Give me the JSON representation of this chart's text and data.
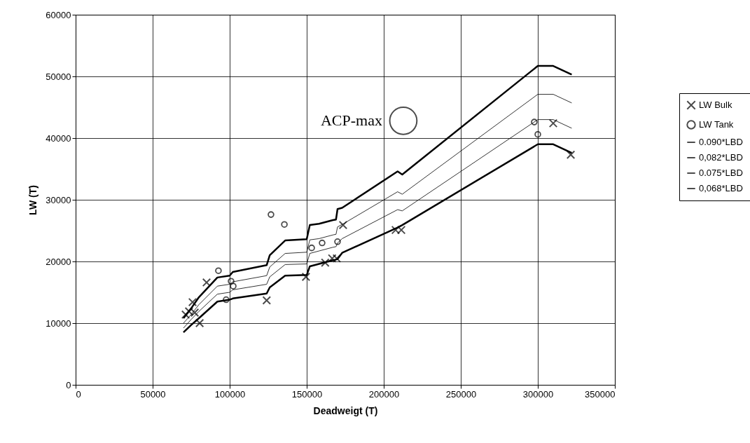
{
  "chart_data": {
    "type": "scatter",
    "xlabel": "Deadweigt (T)",
    "ylabel": "LW (T)",
    "xlim": [
      0,
      350000
    ],
    "xticks": [
      0,
      50000,
      100000,
      150000,
      200000,
      250000,
      300000,
      350000
    ],
    "ylim": [
      0,
      60000
    ],
    "yticks": [
      0,
      10000,
      20000,
      30000,
      40000,
      50000,
      60000
    ],
    "grid": true,
    "legend": "right",
    "annotations": [
      {
        "text": "ACP-max",
        "x": 212700,
        "y": 42800
      }
    ],
    "series": [
      {
        "name": "LW Bulk",
        "marker": "cross",
        "color": "#000000",
        "x": [
          71400,
          73600,
          75900,
          77300,
          80500,
          85000,
          124000,
          149500,
          162000,
          166500,
          169500,
          173600,
          207700,
          211400,
          310000,
          321400
        ],
        "values": [
          11400,
          11900,
          13400,
          11700,
          10000,
          16600,
          13700,
          17500,
          19800,
          20500,
          20500,
          25900,
          25100,
          25100,
          42400,
          37300
        ]
      },
      {
        "name": "LW Tank",
        "marker": "circle",
        "color": "#000000",
        "x": [
          92700,
          97700,
          100900,
          102300,
          126800,
          135500,
          153200,
          160000,
          170000,
          297700,
          300000
        ],
        "values": [
          18500,
          13800,
          16800,
          16000,
          27600,
          26000,
          22200,
          23000,
          23200,
          42600,
          40600
        ]
      },
      {
        "name": "0.090*LBD",
        "type": "line",
        "marker": "none",
        "color": "#000000",
        "x": [
          70000,
          75000,
          80000,
          92000,
          100000,
          102000,
          124000,
          126000,
          136000,
          150000,
          152000,
          158000,
          167000,
          169000,
          170000,
          173000,
          209000,
          212000,
          300000,
          310000,
          322000
        ],
        "values": [
          10800,
          12400,
          14200,
          17400,
          17700,
          18300,
          19400,
          21000,
          23400,
          23600,
          25900,
          26100,
          26700,
          26800,
          28500,
          28700,
          34600,
          34100,
          51700,
          51700,
          50300
        ]
      },
      {
        "name": "0,082*LBD",
        "type": "line",
        "marker": "none",
        "color": "#000000",
        "x": [
          70000,
          75000,
          80000,
          92000,
          100000,
          102000,
          124000,
          126000,
          136000,
          150000,
          152000,
          158000,
          167000,
          169000,
          170000,
          173000,
          209000,
          212000,
          300000,
          310000,
          322000
        ],
        "values": [
          10000,
          11400,
          13000,
          16000,
          16300,
          16700,
          17700,
          19100,
          21300,
          21500,
          23500,
          23700,
          24300,
          24400,
          25600,
          26000,
          31300,
          30900,
          47100,
          47100,
          45700
        ]
      },
      {
        "name": "0.075*LBD",
        "type": "line",
        "marker": "none",
        "color": "#000000",
        "x": [
          70000,
          75000,
          80000,
          92000,
          100000,
          102000,
          124000,
          126000,
          136000,
          150000,
          152000,
          158000,
          167000,
          169000,
          170000,
          173000,
          209000,
          212000,
          300000,
          310000,
          322000
        ],
        "values": [
          9200,
          10600,
          11900,
          14700,
          15000,
          15400,
          16300,
          17500,
          19500,
          19600,
          21300,
          21700,
          22300,
          22400,
          23000,
          23700,
          28400,
          28200,
          43000,
          43000,
          41600
        ]
      },
      {
        "name": "0,068*LBD",
        "type": "line",
        "marker": "none",
        "color": "#000000",
        "x": [
          70000,
          75000,
          80000,
          92000,
          100000,
          102000,
          124000,
          126000,
          136000,
          150000,
          152000,
          158000,
          167000,
          169000,
          170000,
          173000,
          209000,
          212000,
          300000,
          310000,
          322000
        ],
        "values": [
          8500,
          9700,
          10800,
          13500,
          13800,
          14000,
          14800,
          15800,
          17700,
          17800,
          19200,
          19600,
          20200,
          20300,
          20400,
          21400,
          25500,
          25900,
          39000,
          39000,
          37600
        ]
      }
    ]
  }
}
